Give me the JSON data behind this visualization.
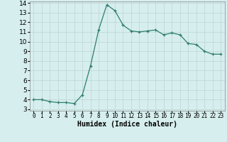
{
  "x": [
    0,
    1,
    2,
    3,
    4,
    5,
    6,
    7,
    8,
    9,
    10,
    11,
    12,
    13,
    14,
    15,
    16,
    17,
    18,
    19,
    20,
    21,
    22,
    23
  ],
  "y": [
    4.0,
    4.0,
    3.8,
    3.7,
    3.7,
    3.6,
    4.5,
    7.5,
    11.2,
    13.8,
    13.2,
    11.7,
    11.1,
    11.0,
    11.1,
    11.2,
    10.7,
    10.9,
    10.7,
    9.8,
    9.7,
    9.0,
    8.7,
    8.7
  ],
  "xlabel": "Humidex (Indice chaleur)",
  "ylim": [
    3,
    14
  ],
  "xlim": [
    -0.5,
    23.5
  ],
  "yticks": [
    3,
    4,
    5,
    6,
    7,
    8,
    9,
    10,
    11,
    12,
    13,
    14
  ],
  "xticks": [
    0,
    1,
    2,
    3,
    4,
    5,
    6,
    7,
    8,
    9,
    10,
    11,
    12,
    13,
    14,
    15,
    16,
    17,
    18,
    19,
    20,
    21,
    22,
    23
  ],
  "line_color": "#2e7d6e",
  "marker": "+",
  "bg_color": "#d6eeee",
  "grid_color": "#c0d8d8"
}
